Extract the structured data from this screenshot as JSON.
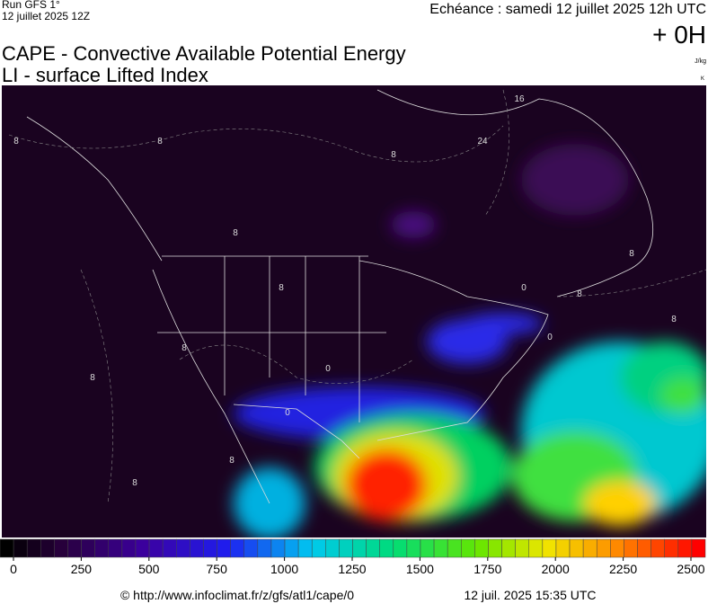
{
  "header": {
    "run": "Run GFS 1°",
    "run_date": "12 juillet 2025 12Z",
    "valid": "Echéance : samedi 12 juillet 2025 12h UTC",
    "lead": "+ 0H",
    "unit_cape": "J/kg",
    "unit_li": "K",
    "title": "CAPE - Convective Available Potential Energy",
    "subtitle": "LI - surface Lifted Index"
  },
  "contour_labels": [
    "8",
    "8",
    "16",
    "24",
    "8",
    "8",
    "8",
    "0",
    "8",
    "8",
    "8",
    "8",
    "0",
    "0",
    "8",
    "8",
    "0",
    "8"
  ],
  "colorbar": {
    "ticks": [
      0,
      250,
      500,
      750,
      1000,
      1250,
      1500,
      1750,
      2000,
      2250,
      2500
    ]
  },
  "footer": {
    "source": "© http://www.infoclimat.fr/z/gfs/atl1/cape/0",
    "generated": "12 juil. 2025 15:35 UTC"
  }
}
